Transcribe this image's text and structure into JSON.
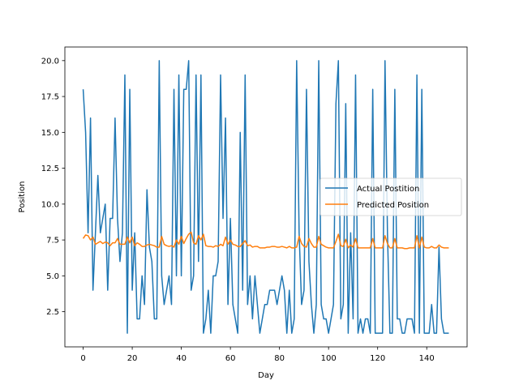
{
  "chart_data": {
    "type": "line",
    "title": "",
    "xlabel": "Day",
    "ylabel": "Position",
    "xlim": [
      -7.45,
      156.45
    ],
    "ylim": [
      0.05,
      20.95
    ],
    "xticks": [
      0,
      20,
      40,
      60,
      80,
      100,
      120,
      140
    ],
    "yticks": [
      2.5,
      5.0,
      7.5,
      10.0,
      12.5,
      15.0,
      17.5,
      20.0
    ],
    "ytick_labels": [
      "2.5",
      "5.0",
      "7.5",
      "10.0",
      "12.5",
      "15.0",
      "17.5",
      "20.0"
    ],
    "grid": false,
    "legend_position": "center-right",
    "series": [
      {
        "name": "Actual Postition",
        "color": "#1f77b4",
        "values": [
          18,
          15,
          8,
          16,
          4,
          8,
          12,
          8,
          9,
          10,
          4,
          9,
          9,
          16,
          9,
          6,
          8,
          19,
          1,
          18,
          4,
          8,
          2,
          2,
          5,
          3,
          11,
          7,
          6,
          2,
          2,
          20,
          5,
          3,
          4,
          5,
          3,
          18,
          5,
          19,
          5,
          18,
          18,
          20,
          4,
          5,
          19,
          6,
          19,
          1,
          2,
          4,
          1,
          5,
          5,
          6,
          19,
          9,
          16,
          3,
          9,
          3,
          2,
          1,
          15,
          4,
          19,
          3,
          5,
          2,
          5,
          3,
          1,
          2,
          3,
          3,
          4,
          4,
          4,
          3,
          4,
          5,
          4,
          1,
          4,
          1,
          2,
          20,
          8,
          3,
          4,
          18,
          6,
          3,
          1,
          3,
          20,
          3,
          2,
          2,
          1,
          2,
          3,
          17,
          20,
          2,
          3,
          17,
          1,
          8,
          2,
          19,
          1,
          2,
          1,
          2,
          2,
          1,
          18,
          1,
          1,
          1,
          1,
          20,
          8,
          1,
          1,
          18,
          2,
          2,
          1,
          1,
          2,
          2,
          2,
          1,
          19,
          1,
          18,
          1,
          1,
          1,
          3,
          1,
          1,
          7,
          2,
          1,
          1,
          1
        ],
        "x_start": 0
      },
      {
        "name": "Predicted Position",
        "color": "#ff7f0e",
        "values": [
          7.6,
          7.85,
          7.8,
          7.5,
          7.7,
          7.2,
          7.3,
          7.4,
          7.25,
          7.35,
          7.3,
          7.1,
          7.3,
          7.3,
          7.6,
          7.2,
          7.2,
          7.2,
          7.7,
          7.3,
          7.7,
          7.1,
          7.3,
          7.2,
          7.05,
          7.05,
          7.15,
          7.2,
          7.15,
          7.1,
          7.0,
          7.0,
          7.75,
          7.2,
          7.1,
          7.05,
          7.1,
          7.0,
          7.5,
          7.2,
          7.75,
          7.25,
          7.6,
          7.9,
          8.05,
          7.3,
          7.2,
          7.8,
          7.5,
          7.9,
          7.1,
          7.05,
          7.05,
          7.0,
          7.1,
          7.05,
          7.2,
          7.1,
          7.7,
          7.2,
          7.5,
          7.2,
          7.15,
          7.05,
          7.05,
          7.25,
          7.45,
          7.1,
          7.15,
          7.0,
          7.05,
          7.05,
          6.95,
          6.95,
          6.95,
          7.0,
          7.0,
          7.05,
          7.05,
          7.0,
          7.0,
          7.05,
          7.0,
          6.95,
          7.05,
          6.95,
          6.95,
          7.0,
          7.75,
          7.25,
          7.05,
          7.0,
          7.6,
          7.25,
          7.0,
          7.0,
          7.75,
          7.2,
          7.1,
          7.0,
          6.95,
          6.95,
          6.95,
          7.4,
          7.9,
          7.1,
          7.05,
          7.55,
          6.95,
          7.15,
          7.0,
          7.6,
          6.95,
          6.95,
          6.95,
          6.95,
          6.95,
          6.95,
          7.6,
          6.95,
          6.95,
          6.95,
          6.95,
          7.8,
          7.25,
          6.95,
          6.95,
          7.6,
          6.95,
          6.95,
          6.95,
          6.9,
          6.9,
          6.95,
          6.95,
          6.95,
          7.8,
          6.95,
          7.7,
          7.0,
          6.95,
          6.95,
          7.05,
          6.95,
          6.95,
          7.15,
          7.0,
          6.95,
          6.95,
          6.95
        ],
        "x_start": 0
      }
    ]
  }
}
